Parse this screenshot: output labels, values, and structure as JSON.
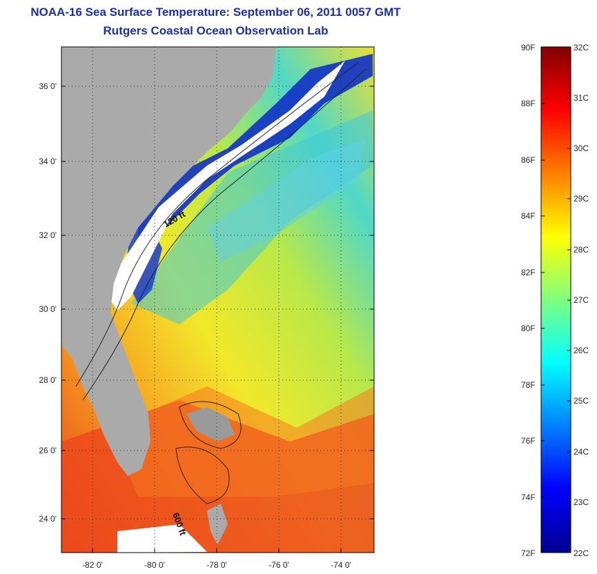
{
  "header": {
    "title": "NOAA-16 Sea Surface Temperature:  September 06, 2011 0057 GMT",
    "subtitle": "Rutgers Coastal Ocean Observation Lab"
  },
  "map": {
    "lat_ticks": [
      "36 0'",
      "34 0'",
      "32 0'",
      "30 0'",
      "28 0'",
      "26 0'",
      "24 0'"
    ],
    "lon_ticks": [
      "-82 0'",
      "-80 0'",
      "-78 0'",
      "-76 0'",
      "-74 0'"
    ],
    "contour_labels": [
      "120 ft",
      "600 ft"
    ],
    "colors": {
      "land": "#aaaaaa",
      "cloud": "#ffffff"
    }
  },
  "colorbar": {
    "fahrenheit": [
      "90F",
      "88F",
      "86F",
      "84F",
      "82F",
      "80F",
      "78F",
      "76F",
      "74F",
      "72F"
    ],
    "celsius": [
      "32C",
      "31C",
      "30C",
      "29C",
      "28C",
      "27C",
      "26C",
      "25C",
      "24C",
      "23C",
      "22C"
    ]
  }
}
